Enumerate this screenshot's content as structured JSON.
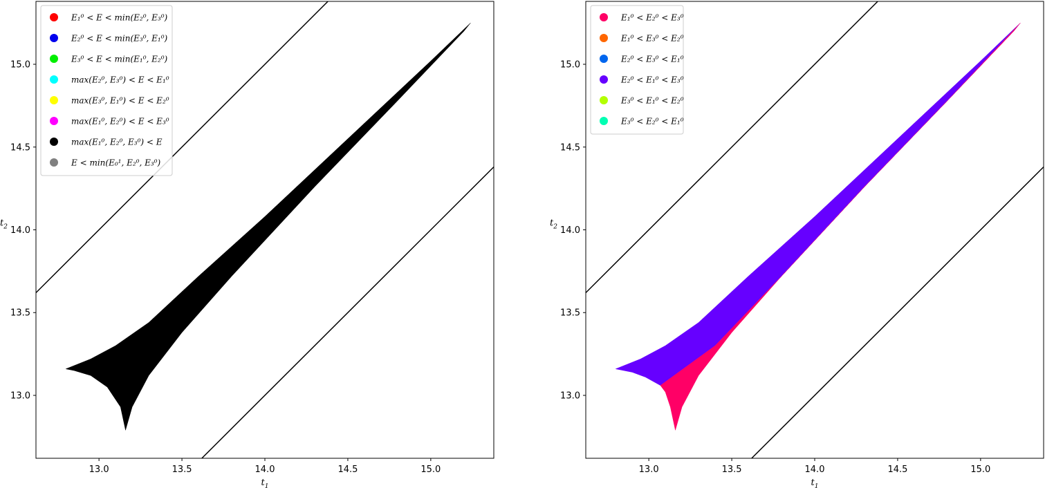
{
  "chart_data": [
    {
      "type": "area",
      "xlabel": "t",
      "xlabel_sub": "1",
      "ylabel": "t",
      "ylabel_sub": "2",
      "xlim": [
        12.62,
        15.38
      ],
      "ylim": [
        12.62,
        15.38
      ],
      "xticks": [
        "13.0",
        "13.5",
        "14.0",
        "14.5",
        "15.0"
      ],
      "yticks": [
        "13.0",
        "13.5",
        "14.0",
        "14.5",
        "15.0"
      ],
      "legend_position": "upper-left",
      "legend": [
        {
          "color": "#ff0000",
          "label": "E₁⁰ < E < min(E₂⁰, E₃⁰)"
        },
        {
          "color": "#0000ee",
          "label": "E₂⁰ < E < min(E₃⁰, E₁⁰)"
        },
        {
          "color": "#00ee00",
          "label": "E₃⁰ < E < min(E₁⁰, E₂⁰)"
        },
        {
          "color": "#00ffff",
          "label": "max(E₂⁰, E₃⁰) < E < E₁⁰"
        },
        {
          "color": "#ffff00",
          "label": "max(E₃⁰, E₁⁰) < E < E₂⁰"
        },
        {
          "color": "#ff00ff",
          "label": "max(E₁⁰, E₂⁰) < E < E₃⁰"
        },
        {
          "color": "#000000",
          "label": "max(E₁⁰, E₂⁰, E₃⁰) < E"
        },
        {
          "color": "#808080",
          "label": "E < min(E₀¹, E₂⁰, E₃⁰)"
        }
      ],
      "boundary_lines": [
        {
          "from": [
            12.62,
            13.62
          ],
          "to": [
            14.38,
            15.38
          ]
        },
        {
          "from": [
            13.62,
            12.62
          ],
          "to": [
            15.38,
            14.38
          ]
        }
      ],
      "regions": [
        {
          "color": "#000000",
          "polygon": [
            [
              12.8,
              13.16
            ],
            [
              12.95,
              13.22
            ],
            [
              13.1,
              13.3
            ],
            [
              13.3,
              13.44
            ],
            [
              13.6,
              13.72
            ],
            [
              14.0,
              14.08
            ],
            [
              14.5,
              14.55
            ],
            [
              15.0,
              15.02
            ],
            [
              15.24,
              15.25
            ],
            [
              15.2,
              15.2
            ],
            [
              14.8,
              14.78
            ],
            [
              14.3,
              14.26
            ],
            [
              13.8,
              13.72
            ],
            [
              13.5,
              13.38
            ],
            [
              13.3,
              13.12
            ],
            [
              13.2,
              12.93
            ],
            [
              13.16,
              12.79
            ],
            [
              13.13,
              12.93
            ],
            [
              13.05,
              13.05
            ],
            [
              12.95,
              13.12
            ],
            [
              12.85,
              13.15
            ]
          ]
        }
      ]
    },
    {
      "type": "area",
      "xlabel": "t",
      "xlabel_sub": "1",
      "ylabel": "t",
      "ylabel_sub": "2",
      "xlim": [
        12.62,
        15.38
      ],
      "ylim": [
        12.62,
        15.38
      ],
      "xticks": [
        "13.0",
        "13.5",
        "14.0",
        "14.5",
        "15.0"
      ],
      "yticks": [
        "13.0",
        "13.5",
        "14.0",
        "14.5",
        "15.0"
      ],
      "legend_position": "upper-left",
      "legend": [
        {
          "color": "#ff0066",
          "label": "E₁⁰ < E₂⁰ < E₃⁰"
        },
        {
          "color": "#ff6600",
          "label": "E₁⁰ < E₃⁰ < E₂⁰"
        },
        {
          "color": "#0066ee",
          "label": "E₂⁰ < E₃⁰ < E₁⁰"
        },
        {
          "color": "#6600ff",
          "label": "E₂⁰ < E₁⁰ < E₃⁰"
        },
        {
          "color": "#b3ff00",
          "label": "E₃⁰ < E₁⁰ < E₂⁰"
        },
        {
          "color": "#00ffb3",
          "label": "E₃⁰ < E₂⁰ < E₁⁰"
        }
      ],
      "boundary_lines": [
        {
          "from": [
            12.62,
            13.62
          ],
          "to": [
            14.38,
            15.38
          ]
        },
        {
          "from": [
            13.62,
            12.62
          ],
          "to": [
            15.38,
            14.38
          ]
        }
      ],
      "regions": [
        {
          "color": "#6600ff",
          "polygon": [
            [
              12.8,
              13.16
            ],
            [
              12.95,
              13.22
            ],
            [
              13.1,
              13.3
            ],
            [
              13.3,
              13.44
            ],
            [
              13.6,
              13.72
            ],
            [
              14.0,
              14.08
            ],
            [
              14.5,
              14.55
            ],
            [
              15.0,
              15.02
            ],
            [
              15.24,
              15.25
            ],
            [
              15.2,
              15.2
            ],
            [
              14.8,
              14.78
            ],
            [
              14.3,
              14.26
            ],
            [
              13.8,
              13.72
            ],
            [
              13.4,
              13.3
            ],
            [
              13.07,
              13.06
            ],
            [
              12.98,
              13.11
            ],
            [
              12.9,
              13.14
            ],
            [
              12.85,
              13.15
            ]
          ]
        },
        {
          "color": "#ff0066",
          "polygon": [
            [
              13.07,
              13.06
            ],
            [
              13.4,
              13.3
            ],
            [
              13.8,
              13.72
            ],
            [
              14.3,
              14.26
            ],
            [
              14.8,
              14.78
            ],
            [
              15.2,
              15.2
            ],
            [
              15.24,
              15.25
            ],
            [
              15.1,
              15.1
            ],
            [
              14.8,
              14.78
            ],
            [
              14.3,
              14.26
            ],
            [
              13.8,
              13.72
            ],
            [
              13.5,
              13.38
            ],
            [
              13.3,
              13.12
            ],
            [
              13.2,
              12.93
            ],
            [
              13.16,
              12.79
            ],
            [
              13.13,
              12.93
            ],
            [
              13.1,
              13.02
            ]
          ]
        }
      ]
    }
  ]
}
